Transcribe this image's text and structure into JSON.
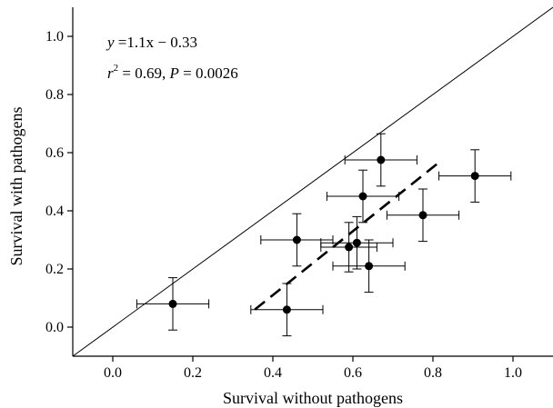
{
  "chart_data": {
    "type": "scatter",
    "xlabel": "Survival without pathogens",
    "ylabel": "Survival with pathogens",
    "xlim": [
      -0.1,
      1.1
    ],
    "ylim": [
      -0.1,
      1.1
    ],
    "xticks": [
      "0.0",
      "0.2",
      "0.4",
      "0.6",
      "0.8",
      "1.0"
    ],
    "yticks": [
      "0.0",
      "0.2",
      "0.4",
      "0.6",
      "0.8",
      "1.0"
    ],
    "grid": false,
    "points": [
      {
        "x": 0.15,
        "y": 0.08,
        "xerr": 0.09,
        "yerr": 0.09
      },
      {
        "x": 0.435,
        "y": 0.06,
        "xerr": 0.09,
        "yerr": 0.09
      },
      {
        "x": 0.46,
        "y": 0.3,
        "xerr": 0.09,
        "yerr": 0.09
      },
      {
        "x": 0.59,
        "y": 0.275,
        "xerr": 0.07,
        "yerr": 0.085
      },
      {
        "x": 0.61,
        "y": 0.29,
        "xerr": 0.09,
        "yerr": 0.09
      },
      {
        "x": 0.64,
        "y": 0.21,
        "xerr": 0.09,
        "yerr": 0.09
      },
      {
        "x": 0.625,
        "y": 0.45,
        "xerr": 0.09,
        "yerr": 0.09
      },
      {
        "x": 0.67,
        "y": 0.575,
        "xerr": 0.09,
        "yerr": 0.09
      },
      {
        "x": 0.775,
        "y": 0.385,
        "xerr": 0.09,
        "yerr": 0.09
      },
      {
        "x": 0.905,
        "y": 0.52,
        "xerr": 0.09,
        "yerr": 0.09
      }
    ],
    "identity_line": {
      "from": [
        -0.1,
        -0.1
      ],
      "to": [
        1.1,
        1.1
      ]
    },
    "regression_line": {
      "slope": 1.1,
      "intercept": -0.33,
      "x_range": [
        0.355,
        0.82
      ]
    },
    "annotations": {
      "equation_y": "y",
      "equation_rest": " =1.1x − 0.33",
      "r_label": "r",
      "r_exp": "2",
      "r_value": " = 0.69, ",
      "p_label": "P",
      "p_value": " = 0.0026"
    }
  }
}
